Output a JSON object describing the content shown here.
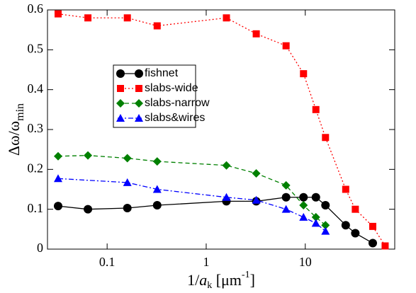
{
  "chart_data": {
    "type": "line",
    "x_label": [
      "1/",
      "a",
      "k",
      " [μm",
      "-1",
      "]"
    ],
    "y_label": [
      "Δω/ω",
      "min"
    ],
    "xlog": true,
    "xlim": [
      0.025,
      80
    ],
    "xticks": [
      0.1,
      1,
      10
    ],
    "ylim": [
      0,
      0.6
    ],
    "yticks": [
      0,
      0.1,
      0.2,
      0.3,
      0.4,
      0.5,
      0.6
    ],
    "series": [
      {
        "name": "fishnet",
        "color": "#000000",
        "dash": "solid",
        "marker": "circle",
        "x": [
          0.032,
          0.064,
          0.16,
          0.32,
          1.6,
          3.2,
          6.4,
          9.6,
          12.8,
          16,
          25.6,
          32,
          48
        ],
        "values": [
          0.108,
          0.1,
          0.103,
          0.11,
          0.12,
          0.12,
          0.13,
          0.13,
          0.13,
          0.11,
          0.06,
          0.04,
          0.015
        ]
      },
      {
        "name": "slabs-wide",
        "color": "#ff0000",
        "dash": "dotted",
        "marker": "square",
        "x": [
          0.032,
          0.064,
          0.16,
          0.32,
          1.6,
          3.2,
          6.4,
          9.6,
          12.8,
          16,
          25.6,
          32,
          48,
          64
        ],
        "values": [
          0.59,
          0.58,
          0.58,
          0.56,
          0.58,
          0.54,
          0.51,
          0.44,
          0.35,
          0.28,
          0.15,
          0.1,
          0.057,
          0.008
        ]
      },
      {
        "name": "slabs-narrow",
        "color": "#008000",
        "dash": "dashed",
        "marker": "diamond",
        "x": [
          0.032,
          0.064,
          0.16,
          0.32,
          1.6,
          3.2,
          6.4,
          9.6,
          12.8,
          16
        ],
        "values": [
          0.233,
          0.235,
          0.228,
          0.22,
          0.21,
          0.19,
          0.16,
          0.11,
          0.08,
          0.06
        ]
      },
      {
        "name": "slabs&wires",
        "color": "#0000ff",
        "dash": "dashdot",
        "marker": "triangle",
        "x": [
          0.032,
          0.16,
          0.32,
          1.6,
          3.2,
          6.4,
          9.6,
          12.8,
          16
        ],
        "values": [
          0.177,
          0.167,
          0.15,
          0.13,
          0.123,
          0.1,
          0.08,
          0.065,
          0.045
        ]
      }
    ]
  }
}
